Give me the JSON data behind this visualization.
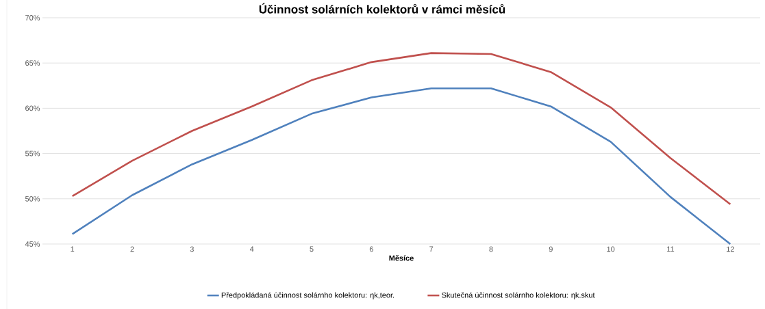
{
  "chart_data": {
    "type": "line",
    "title": "Účinnost solárních kolektorů v rámci měsíců",
    "xlabel": "Měsíce",
    "categories": [
      "1",
      "2",
      "3",
      "4",
      "5",
      "6",
      "7",
      "8",
      "9",
      "10",
      "11",
      "12"
    ],
    "series": [
      {
        "name": "Předpokládaná účinnost solárnho kolektoru: ηk,teor.",
        "color": "#4f81bd",
        "values": [
          46.1,
          50.4,
          53.8,
          56.5,
          59.4,
          61.2,
          62.2,
          62.2,
          60.2,
          56.3,
          50.2,
          45.0
        ]
      },
      {
        "name": "Skutečná účinnost solárnho kolektoru: ηk.skut",
        "color": "#c0504d",
        "values": [
          50.3,
          54.2,
          57.5,
          60.2,
          63.1,
          65.1,
          66.1,
          66.0,
          64.0,
          60.1,
          54.5,
          49.4
        ]
      }
    ],
    "ylim": [
      45,
      70
    ],
    "yticks": [
      {
        "value": 45,
        "label": "45%"
      },
      {
        "value": 50,
        "label": "50%"
      },
      {
        "value": 55,
        "label": "55%"
      },
      {
        "value": 60,
        "label": "60%"
      },
      {
        "value": 65,
        "label": "65%"
      },
      {
        "value": 70,
        "label": "70%"
      }
    ],
    "grid": "y",
    "legend": "bottom",
    "marker": "none",
    "line_style": "solid"
  }
}
